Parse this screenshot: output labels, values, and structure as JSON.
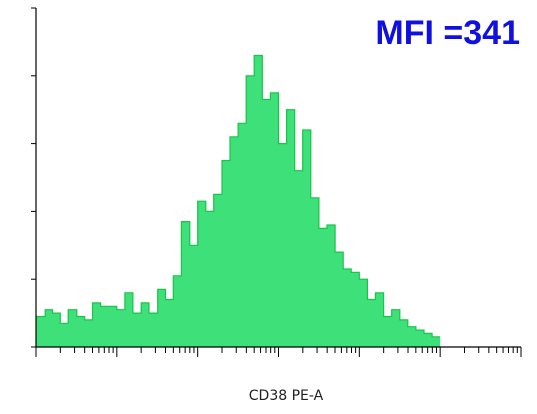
{
  "chart_data": {
    "type": "area",
    "title": "",
    "xlabel": "CD38 PE-A",
    "ylabel": "",
    "x_scale": "log",
    "xlim": [
      1,
      1000000
    ],
    "ylim": [
      0,
      100
    ],
    "grid": false,
    "legend": "none",
    "annotation": "MFI =341",
    "colors": {
      "fill": "#3ee07a",
      "stroke": "#19c548",
      "annotation": "#1010e0",
      "axis": "#000000"
    },
    "series": [
      {
        "x": [
          1.3,
          1.6,
          2,
          2.5,
          3.2,
          4,
          5,
          6.3,
          8,
          10,
          12.6,
          15.8,
          20,
          25,
          32,
          40,
          50,
          63,
          80,
          100,
          126,
          158,
          200,
          251,
          316,
          398,
          501,
          631,
          794,
          1000,
          1259,
          1585,
          1995,
          2512,
          3162,
          3981,
          5012,
          6310,
          7943,
          10000,
          12589,
          15849,
          19953,
          25119,
          31623,
          39811,
          50119,
          63096,
          79433,
          100000
        ],
        "y": [
          9,
          11,
          10,
          7,
          11,
          9,
          8,
          13,
          12,
          12,
          11,
          16,
          10,
          13,
          10,
          17,
          14,
          21,
          37,
          30,
          43,
          40,
          45,
          55,
          62,
          66,
          80,
          86,
          73,
          75,
          60,
          70,
          52,
          64,
          44,
          35,
          36,
          28,
          23,
          22,
          20,
          14,
          16,
          9,
          11,
          8,
          6,
          5,
          4,
          3
        ]
      }
    ]
  }
}
